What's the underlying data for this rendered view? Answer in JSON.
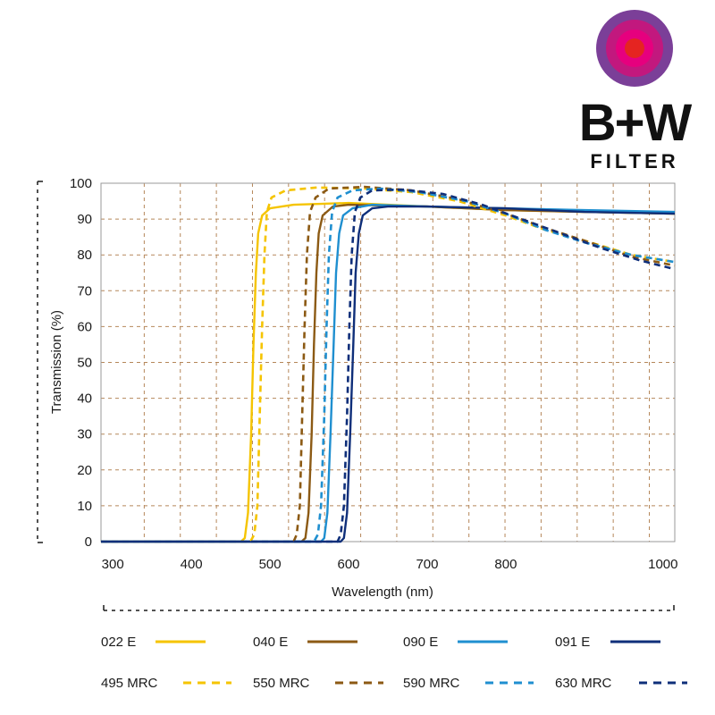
{
  "brand": {
    "name": "B+W",
    "subtitle": "FILTER",
    "logo_colors": [
      "#7b3f98",
      "#c2187e",
      "#e6007e",
      "#e52421"
    ]
  },
  "chart_data": {
    "type": "line",
    "title": "",
    "xlabel": "Wavelength (nm)",
    "ylabel": "Transmission (%)",
    "xlim": [
      285,
      1015
    ],
    "ylim": [
      0,
      100
    ],
    "xticks": [
      300,
      400,
      500,
      600,
      700,
      800,
      1000
    ],
    "xtick_labels": [
      "300",
      "400",
      "500",
      "600",
      "700",
      "800",
      "1000"
    ],
    "yticks": [
      0,
      10,
      20,
      30,
      40,
      50,
      60,
      70,
      80,
      90,
      100
    ],
    "ytick_labels": [
      "0",
      "10",
      "20",
      "30",
      "40",
      "50",
      "60",
      "70",
      "80",
      "90",
      "100"
    ],
    "grid": true,
    "legend_position": "bottom",
    "series": [
      {
        "name": "022 E",
        "color": "#f5c400",
        "dash": false,
        "points": [
          [
            285,
            0
          ],
          [
            463,
            0
          ],
          [
            468,
            1
          ],
          [
            472,
            8
          ],
          [
            476,
            30
          ],
          [
            479,
            55
          ],
          [
            482,
            75
          ],
          [
            485,
            86
          ],
          [
            490,
            91
          ],
          [
            500,
            93
          ],
          [
            530,
            94
          ],
          [
            600,
            94.5
          ],
          [
            700,
            93.5
          ],
          [
            800,
            92.5
          ],
          [
            900,
            92
          ],
          [
            1015,
            91.5
          ]
        ]
      },
      {
        "name": "040 E",
        "color": "#8c5a14",
        "dash": false,
        "points": [
          [
            285,
            0
          ],
          [
            540,
            0
          ],
          [
            545,
            1
          ],
          [
            549,
            8
          ],
          [
            553,
            30
          ],
          [
            556,
            55
          ],
          [
            559,
            75
          ],
          [
            562,
            86
          ],
          [
            567,
            91
          ],
          [
            580,
            93.5
          ],
          [
            600,
            94
          ],
          [
            700,
            93.5
          ],
          [
            800,
            92.5
          ],
          [
            900,
            92
          ],
          [
            1015,
            91.5
          ]
        ]
      },
      {
        "name": "090 E",
        "color": "#1f8fd0",
        "dash": false,
        "points": [
          [
            285,
            0
          ],
          [
            565,
            0
          ],
          [
            569,
            1
          ],
          [
            573,
            8
          ],
          [
            577,
            30
          ],
          [
            581,
            55
          ],
          [
            584,
            75
          ],
          [
            588,
            86
          ],
          [
            593,
            91
          ],
          [
            605,
            93
          ],
          [
            630,
            94
          ],
          [
            700,
            93.5
          ],
          [
            800,
            93
          ],
          [
            900,
            92.5
          ],
          [
            1015,
            92
          ]
        ]
      },
      {
        "name": "091 E",
        "color": "#0f2f7a",
        "dash": false,
        "points": [
          [
            285,
            0
          ],
          [
            590,
            0
          ],
          [
            594,
            1
          ],
          [
            598,
            8
          ],
          [
            602,
            30
          ],
          [
            606,
            55
          ],
          [
            609,
            75
          ],
          [
            613,
            86
          ],
          [
            618,
            91
          ],
          [
            630,
            93
          ],
          [
            650,
            93.5
          ],
          [
            700,
            93.5
          ],
          [
            800,
            93
          ],
          [
            900,
            92
          ],
          [
            1015,
            91.5
          ]
        ]
      },
      {
        "name": "495 MRC",
        "color": "#f5c400",
        "dash": true,
        "points": [
          [
            285,
            0
          ],
          [
            475,
            0
          ],
          [
            480,
            2
          ],
          [
            484,
            10
          ],
          [
            487,
            35
          ],
          [
            490,
            60
          ],
          [
            493,
            80
          ],
          [
            496,
            92
          ],
          [
            502,
            96
          ],
          [
            520,
            98
          ],
          [
            560,
            98.8
          ],
          [
            620,
            98.5
          ],
          [
            680,
            97.5
          ],
          [
            740,
            95
          ],
          [
            800,
            91
          ],
          [
            850,
            87
          ],
          [
            900,
            84
          ],
          [
            960,
            80
          ],
          [
            1015,
            78
          ]
        ]
      },
      {
        "name": "550 MRC",
        "color": "#8c5a14",
        "dash": true,
        "points": [
          [
            285,
            0
          ],
          [
            530,
            0
          ],
          [
            534,
            2
          ],
          [
            538,
            10
          ],
          [
            541,
            35
          ],
          [
            544,
            60
          ],
          [
            547,
            80
          ],
          [
            551,
            92
          ],
          [
            558,
            96
          ],
          [
            575,
            98.5
          ],
          [
            620,
            99
          ],
          [
            680,
            98
          ],
          [
            740,
            95.5
          ],
          [
            800,
            91.5
          ],
          [
            850,
            87.5
          ],
          [
            900,
            84
          ],
          [
            960,
            79.5
          ],
          [
            1015,
            77
          ]
        ]
      },
      {
        "name": "590 MRC",
        "color": "#1f8fd0",
        "dash": true,
        "points": [
          [
            285,
            0
          ],
          [
            556,
            0
          ],
          [
            561,
            2
          ],
          [
            565,
            10
          ],
          [
            569,
            35
          ],
          [
            572,
            60
          ],
          [
            575,
            80
          ],
          [
            579,
            92
          ],
          [
            586,
            96
          ],
          [
            605,
            98
          ],
          [
            640,
            98.5
          ],
          [
            690,
            97.5
          ],
          [
            750,
            95
          ],
          [
            800,
            91.5
          ],
          [
            850,
            87
          ],
          [
            900,
            83.5
          ],
          [
            960,
            80
          ],
          [
            1015,
            78
          ]
        ]
      },
      {
        "name": "630 MRC",
        "color": "#0f2f7a",
        "dash": true,
        "points": [
          [
            285,
            0
          ],
          [
            586,
            0
          ],
          [
            590,
            2
          ],
          [
            594,
            10
          ],
          [
            598,
            35
          ],
          [
            601,
            60
          ],
          [
            604,
            80
          ],
          [
            608,
            92
          ],
          [
            615,
            96
          ],
          [
            630,
            98
          ],
          [
            670,
            98.2
          ],
          [
            720,
            97
          ],
          [
            770,
            94
          ],
          [
            820,
            90
          ],
          [
            870,
            86
          ],
          [
            920,
            82
          ],
          [
            970,
            78.5
          ],
          [
            1015,
            76
          ]
        ]
      }
    ]
  }
}
